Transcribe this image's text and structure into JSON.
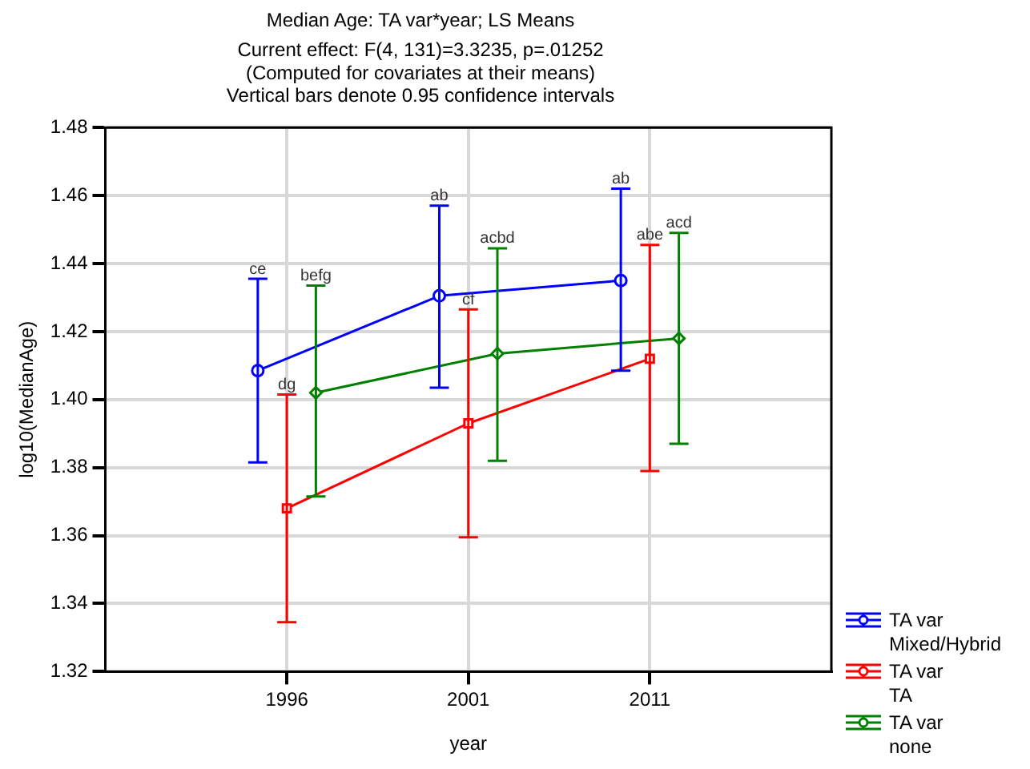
{
  "chart_data": {
    "type": "line",
    "title": "Median Age: TA var*year; LS Means",
    "subtitle": "Current effect: F(4, 131)=3.3235, p=.01252\n(Computed for covariates at their means)\nVertical bars denote 0.95 confidence intervals",
    "xlabel": "year",
    "ylabel": "log10(MedianAge)",
    "categories": [
      "1996",
      "2001",
      "2011"
    ],
    "series": [
      {
        "name": "TA var\nMixed/Hybrid",
        "color": "#0000ff",
        "marker": "circle",
        "values": [
          1.4085,
          1.4305,
          1.435
        ],
        "errors": [
          [
            1.3815,
            1.4355
          ],
          [
            1.4035,
            1.457
          ],
          [
            1.4085,
            1.462
          ]
        ]
      },
      {
        "name": "TA var\nTA",
        "color": "#ff0000",
        "marker": "square",
        "values": [
          1.368,
          1.393,
          1.412
        ],
        "errors": [
          [
            1.3345,
            1.4015
          ],
          [
            1.3595,
            1.4265
          ],
          [
            1.379,
            1.4455
          ]
        ]
      },
      {
        "name": "TA var\nnone",
        "color": "#008000",
        "marker": "diamond",
        "values": [
          1.402,
          1.4135,
          1.418
        ],
        "errors": [
          [
            1.3715,
            1.4335
          ],
          [
            1.382,
            1.4445
          ],
          [
            1.387,
            1.449
          ]
        ]
      }
    ],
    "ylim": [
      1.32,
      1.48
    ],
    "yticks": [
      1.32,
      1.34,
      1.36,
      1.38,
      {
        "value": 1.4,
        "label": "1.40"
      },
      1.42,
      1.44,
      1.46,
      1.48
    ],
    "grid": true,
    "legend": "bottom right",
    "annotations": [
      "ce",
      "ab",
      "ab",
      "dg",
      "cf",
      "abe",
      "befg",
      "acbd",
      "acd"
    ]
  }
}
